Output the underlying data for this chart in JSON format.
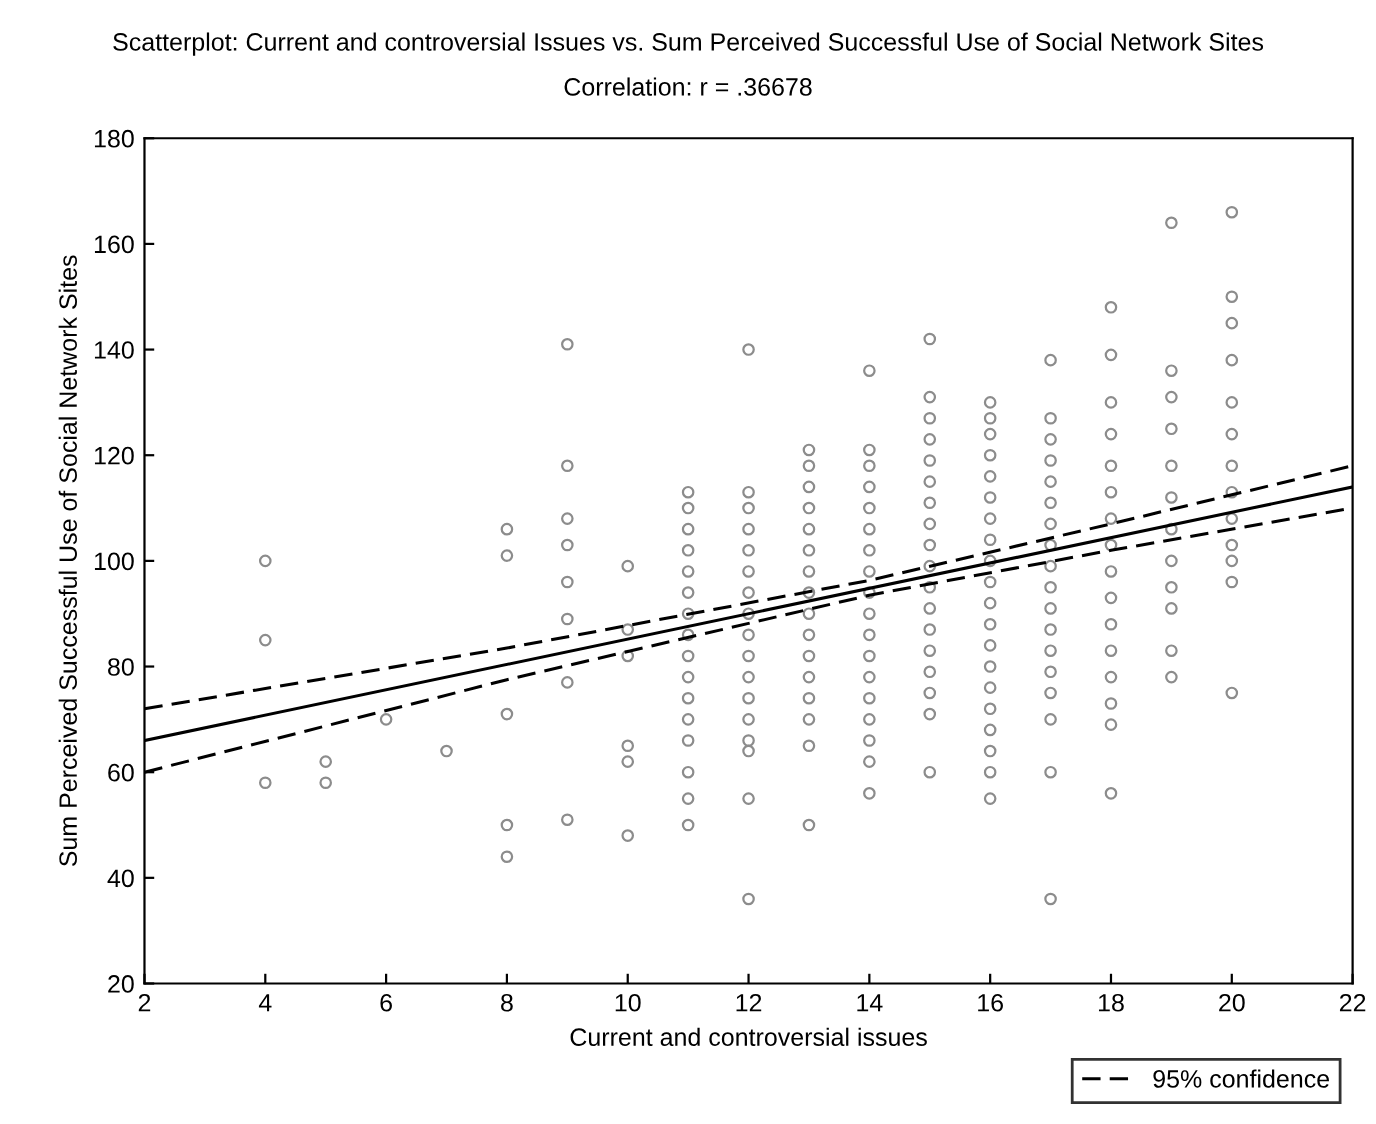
{
  "chart_data": {
    "type": "scatter",
    "title": "Scatterplot: Current and controversial Issues vs. Sum Perceived Successful Use of Social Network Sites",
    "subtitle": "Correlation: r = .36678",
    "xlabel": "Current and controversial issues",
    "ylabel": "Sum Perceived Successful Use of Social Network Sites",
    "xlim": [
      2,
      22
    ],
    "xticks": [
      2,
      4,
      6,
      8,
      10,
      12,
      14,
      16,
      18,
      20,
      22
    ],
    "ylim": [
      20,
      180
    ],
    "yticks": [
      20,
      40,
      60,
      80,
      100,
      120,
      140,
      160,
      180
    ],
    "grid": false,
    "legend": "bottom right",
    "series": [
      {
        "color": "#8c8c8c",
        "marker": "circle",
        "x": [
          4,
          4,
          4,
          5,
          5,
          6,
          7,
          8,
          8,
          8,
          8,
          8,
          9,
          9,
          9,
          9,
          9,
          9,
          9,
          9,
          10,
          10,
          10,
          10,
          10,
          10,
          11,
          11,
          11,
          11,
          11,
          11,
          11,
          11,
          11,
          11,
          11,
          11,
          11,
          11,
          11,
          11,
          12,
          12,
          12,
          12,
          12,
          12,
          12,
          12,
          12,
          12,
          12,
          12,
          12,
          12,
          12,
          12,
          12,
          13,
          13,
          13,
          13,
          13,
          13,
          13,
          13,
          13,
          13,
          13,
          13,
          13,
          13,
          13,
          13,
          14,
          14,
          14,
          14,
          14,
          14,
          14,
          14,
          14,
          14,
          14,
          14,
          14,
          14,
          14,
          14,
          14,
          14,
          15,
          15,
          15,
          15,
          15,
          15,
          15,
          15,
          15,
          15,
          15,
          15,
          15,
          15,
          15,
          15,
          15,
          15,
          16,
          16,
          16,
          16,
          16,
          16,
          16,
          16,
          16,
          16,
          16,
          16,
          16,
          16,
          16,
          16,
          16,
          16,
          16,
          16,
          17,
          17,
          17,
          17,
          17,
          17,
          17,
          17,
          17,
          17,
          17,
          17,
          17,
          17,
          17,
          17,
          17,
          17,
          18,
          18,
          18,
          18,
          18,
          18,
          18,
          18,
          18,
          18,
          18,
          18,
          18,
          18,
          18,
          18,
          19,
          19,
          19,
          19,
          19,
          19,
          19,
          19,
          19,
          19,
          19,
          19,
          20,
          20,
          20,
          20,
          20,
          20,
          20,
          20,
          20,
          20,
          20,
          20,
          20
        ],
        "values": [
          100,
          85,
          58,
          62,
          58,
          70,
          64,
          106,
          101,
          71,
          50,
          44,
          141,
          118,
          108,
          103,
          96,
          89,
          77,
          51,
          99,
          87,
          82,
          65,
          62,
          48,
          113,
          110,
          106,
          102,
          98,
          94,
          90,
          86,
          82,
          78,
          74,
          70,
          66,
          60,
          55,
          50,
          140,
          113,
          110,
          106,
          102,
          98,
          94,
          90,
          86,
          82,
          78,
          74,
          70,
          66,
          64,
          55,
          36,
          121,
          118,
          114,
          110,
          106,
          102,
          98,
          94,
          90,
          86,
          82,
          78,
          74,
          70,
          65,
          50,
          136,
          121,
          118,
          114,
          110,
          106,
          102,
          98,
          94,
          90,
          86,
          82,
          78,
          74,
          70,
          66,
          62,
          56,
          142,
          131,
          127,
          123,
          119,
          115,
          111,
          107,
          103,
          99,
          95,
          91,
          87,
          83,
          79,
          75,
          71,
          60,
          130,
          127,
          124,
          120,
          116,
          112,
          108,
          104,
          100,
          96,
          92,
          88,
          84,
          80,
          76,
          72,
          68,
          64,
          60,
          55,
          138,
          127,
          123,
          119,
          115,
          111,
          107,
          103,
          99,
          95,
          91,
          87,
          83,
          79,
          75,
          70,
          60,
          36,
          148,
          139,
          130,
          124,
          118,
          113,
          108,
          103,
          98,
          93,
          88,
          83,
          78,
          73,
          69,
          56,
          164,
          136,
          131,
          125,
          118,
          112,
          106,
          100,
          95,
          91,
          83,
          78,
          166,
          150,
          145,
          138,
          130,
          124,
          118,
          113,
          108,
          103,
          100,
          96,
          75
        ]
      },
      {
        "type": "line",
        "color": "#000000",
        "line_style": "solid",
        "x": [
          2,
          22
        ],
        "values": [
          66,
          114
        ]
      },
      {
        "type": "line",
        "name": "95% confidence",
        "color": "#000000",
        "line_style": "dashed",
        "x": [
          2,
          8,
          14,
          18,
          22
        ],
        "values": [
          72,
          83.5,
          96.3,
          107,
          118
        ]
      },
      {
        "type": "line",
        "color": "#000000",
        "line_style": "dashed",
        "x": [
          2,
          8,
          14,
          18,
          22
        ],
        "values": [
          60,
          77.5,
          93.5,
          102,
          110
        ]
      }
    ]
  }
}
